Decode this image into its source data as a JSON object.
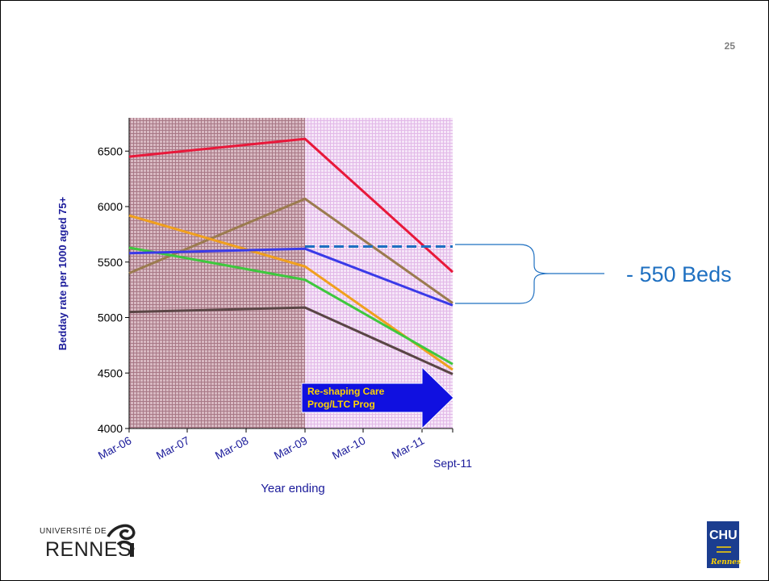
{
  "page_number": "25",
  "annotation": {
    "beds_label": "- 550 Beds",
    "arrow_label_line1": "Re-shaping Care",
    "arrow_label_line2": "Prog/LTC Prog"
  },
  "logos": {
    "university_small": "UNIVERSITÉ DE",
    "university_big": "RENNES",
    "chu_text": "CHU",
    "chu_sub": "Rennes"
  },
  "colors": {
    "red": "#e8183a",
    "brown": "#9b7b4f",
    "orange": "#f0a01e",
    "green": "#3ec83e",
    "blue": "#3a3ae8",
    "dark_brown": "#5a4545",
    "dashed_blue": "#1f70c1",
    "arrow_blue": "#1010e0",
    "period1_bg": "#c9a8b4",
    "period2_bg": "#f1dcf4"
  },
  "chart_data": {
    "type": "line",
    "title": "",
    "xlabel": "Year ending",
    "ylabel": "Bedday rate per 1000 aged 75+",
    "x": [
      "Mar-06",
      "Mar-09",
      "Sept-11"
    ],
    "x_tick_labels": [
      "Mar-06",
      "Mar-07",
      "Mar-08",
      "Mar-09",
      "Mar-10",
      "Mar-11",
      "Sept-11"
    ],
    "ylim": [
      4000,
      6800
    ],
    "y_ticks": [
      4000,
      4500,
      5000,
      5500,
      6000,
      6500
    ],
    "series": [
      {
        "color": "red",
        "values": [
          6450,
          6610,
          5410
        ]
      },
      {
        "color": "brown",
        "values": [
          5400,
          6070,
          5130
        ]
      },
      {
        "color": "orange",
        "values": [
          5920,
          5460,
          4530
        ]
      },
      {
        "color": "green",
        "values": [
          5630,
          5340,
          4580
        ]
      },
      {
        "color": "blue",
        "values": [
          5580,
          5620,
          5110
        ]
      },
      {
        "color": "dark_brown",
        "values": [
          5050,
          5090,
          4490
        ]
      }
    ],
    "reference_line": {
      "value": 5640,
      "from": "Mar-09",
      "to": "Sept-11",
      "style": "dashed"
    },
    "shaded_periods": [
      "Mar-06 to Mar-09",
      "Mar-09 to Sept-11"
    ]
  }
}
